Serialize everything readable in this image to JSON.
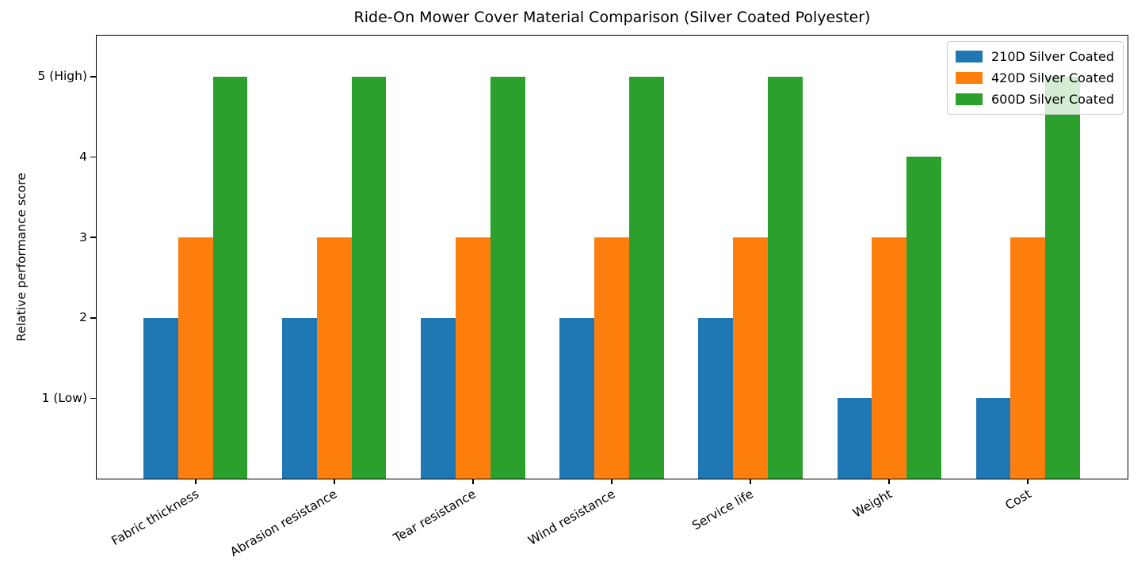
{
  "chart_data": {
    "type": "bar",
    "title": "Ride-On Mower Cover Material Comparison (Silver Coated Polyester)",
    "ylabel": "Relative performance score",
    "xlabel": "",
    "categories": [
      "Fabric thickness",
      "Abrasion resistance",
      "Tear resistance",
      "Wind resistance",
      "Service life",
      "Weight",
      "Cost"
    ],
    "series": [
      {
        "name": "210D Silver Coated",
        "color": "#1f77b4",
        "values": [
          2,
          2,
          2,
          2,
          2,
          1,
          1
        ]
      },
      {
        "name": "420D Silver Coated",
        "color": "#ff7f0e",
        "values": [
          3,
          3,
          3,
          3,
          3,
          3,
          3
        ]
      },
      {
        "name": "600D Silver Coated",
        "color": "#2ca02c",
        "values": [
          5,
          5,
          5,
          5,
          5,
          4,
          5
        ]
      }
    ],
    "yticks": [
      {
        "value": 1,
        "label": "1 (Low)"
      },
      {
        "value": 2,
        "label": "2"
      },
      {
        "value": 3,
        "label": "3"
      },
      {
        "value": 4,
        "label": "4"
      },
      {
        "value": 5,
        "label": "5 (High)"
      }
    ],
    "ylim": [
      0,
      5.5
    ],
    "grid": false,
    "legend_position": "upper right",
    "bar_group_layout": {
      "bar_width_units": 0.25,
      "xlim": [
        -0.7125,
        6.7125
      ]
    }
  }
}
